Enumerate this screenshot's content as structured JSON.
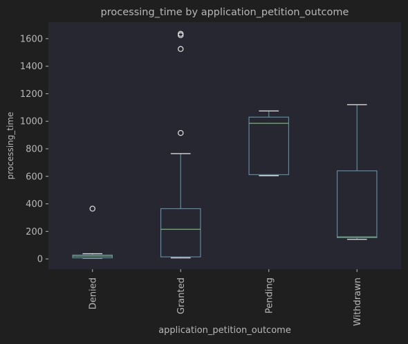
{
  "colors": {
    "figure_bg": "#1f1f1f",
    "axes_bg": "#262730",
    "text": "#b8b8b8",
    "box": "#5f8aa0",
    "median": "#6fa86f",
    "flier": "#d8d8d8"
  },
  "chart_data": {
    "type": "boxplot",
    "title": "processing_time by application_petition_outcome",
    "xlabel": "application_petition_outcome",
    "ylabel": "processing_time",
    "ylim": [
      -75,
      1720
    ],
    "yticks": [
      0,
      200,
      400,
      600,
      800,
      1000,
      1200,
      1400,
      1600
    ],
    "grid": false,
    "legend": "none",
    "categories": [
      "Denied",
      "Granted",
      "Pending",
      "Withdrawn"
    ],
    "boxes": [
      {
        "label": "Denied",
        "whislo": 6,
        "q1": 8,
        "med": 20,
        "q3": 28,
        "whishi": 38,
        "fliers": [
          365
        ]
      },
      {
        "label": "Granted",
        "whislo": 8,
        "q1": 15,
        "med": 215,
        "q3": 365,
        "whishi": 765,
        "fliers": [
          915,
          1525,
          1625,
          1635
        ]
      },
      {
        "label": "Pending",
        "whislo": 605,
        "q1": 612,
        "med": 985,
        "q3": 1030,
        "whishi": 1075,
        "fliers": []
      },
      {
        "label": "Withdrawn",
        "whislo": 142,
        "q1": 155,
        "med": 160,
        "q3": 640,
        "whishi": 1120,
        "fliers": []
      }
    ]
  }
}
